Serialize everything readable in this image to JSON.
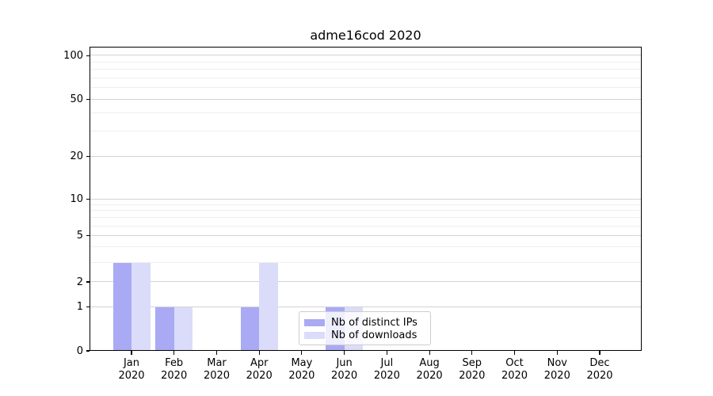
{
  "chart_data": {
    "type": "bar",
    "title": "adme16cod 2020",
    "year": "2020",
    "categories": [
      "Jan",
      "Feb",
      "Mar",
      "Apr",
      "May",
      "Jun",
      "Jul",
      "Aug",
      "Sep",
      "Oct",
      "Nov",
      "Dec"
    ],
    "series": [
      {
        "name": "Nb of distinct IPs",
        "color": "#a9aaf3",
        "values": [
          3,
          1,
          0,
          1,
          0,
          1,
          0,
          0,
          0,
          0,
          0,
          0
        ]
      },
      {
        "name": "Nb of downloads",
        "color": "#dbdcf9",
        "values": [
          3,
          1,
          0,
          3,
          0,
          1,
          0,
          0,
          0,
          0,
          0,
          0
        ]
      }
    ],
    "yticks": [
      0,
      1,
      2,
      5,
      10,
      20,
      50,
      100
    ],
    "minor_yticks": [
      3,
      4,
      6,
      7,
      8,
      9,
      30,
      40,
      60,
      70,
      80,
      90
    ],
    "scale": "log above 1, linear 0-1",
    "ylim": [
      0,
      115
    ],
    "grid": "horizontal major+minor",
    "legend_position": "lower center, inside axes"
  },
  "colors": {
    "distinct_ips": "#a9aaf3",
    "downloads": "#dbdcf9",
    "grid_major": "#d3d3d3",
    "grid_minor": "#eeeeee",
    "spine": "#000000",
    "legend_border": "#cccccc"
  }
}
